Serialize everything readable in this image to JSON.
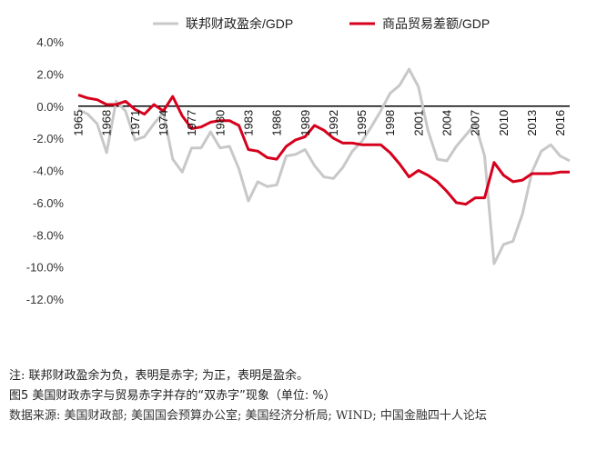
{
  "chart_data": {
    "type": "line",
    "ylim": [
      -12,
      4
    ],
    "y_ticks": [
      "4.0%",
      "2.0%",
      "0.0%",
      "-2.0%",
      "-4.0%",
      "-6.0%",
      "-8.0%",
      "-10.0%",
      "-12.0%"
    ],
    "x_ticks": [
      "1965",
      "1968",
      "1971",
      "1974",
      "1977",
      "1980",
      "1983",
      "1986",
      "1989",
      "1992",
      "1995",
      "1998",
      "2001",
      "2004",
      "2007",
      "2010",
      "2013",
      "2016"
    ],
    "xlim": [
      1965,
      2017
    ],
    "grid": false,
    "legend_position": "top",
    "series": [
      {
        "name": "联邦财政盈余/GDP",
        "color": "#c8c8c8",
        "x": [
          1965,
          1966,
          1967,
          1968,
          1969,
          1970,
          1971,
          1972,
          1973,
          1974,
          1975,
          1976,
          1977,
          1978,
          1979,
          1980,
          1981,
          1982,
          1983,
          1984,
          1985,
          1986,
          1987,
          1988,
          1989,
          1990,
          1991,
          1992,
          1993,
          1994,
          1995,
          1996,
          1997,
          1998,
          1999,
          2000,
          2001,
          2002,
          2003,
          2004,
          2005,
          2006,
          2007,
          2008,
          2009,
          2010,
          2011,
          2012,
          2013,
          2014,
          2015,
          2016,
          2017
        ],
        "values": [
          -0.2,
          -0.5,
          -1.1,
          -2.9,
          0.3,
          -0.3,
          -2.1,
          -1.9,
          -1.1,
          -0.4,
          -3.3,
          -4.1,
          -2.6,
          -2.6,
          -1.6,
          -2.6,
          -2.5,
          -3.9,
          -5.9,
          -4.7,
          -5.0,
          -4.9,
          -3.1,
          -3.0,
          -2.7,
          -3.7,
          -4.4,
          -4.5,
          -3.8,
          -2.8,
          -2.2,
          -1.3,
          -0.3,
          0.8,
          1.3,
          2.3,
          1.2,
          -1.5,
          -3.3,
          -3.4,
          -2.5,
          -1.8,
          -1.1,
          -3.1,
          -9.8,
          -8.6,
          -8.4,
          -6.7,
          -4.1,
          -2.8,
          -2.4,
          -3.1,
          -3.4
        ]
      },
      {
        "name": "商品贸易差额/GDP",
        "color": "#d6001c",
        "x": [
          1965,
          1966,
          1967,
          1968,
          1969,
          1970,
          1971,
          1972,
          1973,
          1974,
          1975,
          1976,
          1977,
          1978,
          1979,
          1980,
          1981,
          1982,
          1983,
          1984,
          1985,
          1986,
          1987,
          1988,
          1989,
          1990,
          1991,
          1992,
          1993,
          1994,
          1995,
          1996,
          1997,
          1998,
          1999,
          2000,
          2001,
          2002,
          2003,
          2004,
          2005,
          2006,
          2007,
          2008,
          2009,
          2010,
          2011,
          2012,
          2013,
          2014,
          2015,
          2016,
          2017
        ],
        "values": [
          0.7,
          0.5,
          0.4,
          0.1,
          0.1,
          0.3,
          -0.2,
          -0.5,
          0.1,
          -0.3,
          0.6,
          -0.6,
          -1.4,
          -1.3,
          -1.0,
          -0.9,
          -0.9,
          -1.2,
          -2.7,
          -2.8,
          -3.2,
          -3.3,
          -2.5,
          -2.1,
          -1.9,
          -1.2,
          -1.5,
          -2.0,
          -2.3,
          -2.3,
          -2.4,
          -2.4,
          -2.4,
          -2.9,
          -3.6,
          -4.4,
          -4.0,
          -4.3,
          -4.7,
          -5.3,
          -6.0,
          -6.1,
          -5.7,
          -5.7,
          -3.5,
          -4.3,
          -4.7,
          -4.6,
          -4.2,
          -4.2,
          -4.2,
          -4.1,
          -4.1
        ]
      }
    ]
  },
  "notes": {
    "note": "注: 联邦财政盈余为负，表明是赤字; 为正，表明是盈余。",
    "caption": "图5  美国财政赤字与贸易赤字并存的“双赤字”现象（单位: %）",
    "source": "数据来源: 美国财政部; 美国国会预算办公室; 美国经济分析局; WIND; 中国金融四十人论坛"
  }
}
